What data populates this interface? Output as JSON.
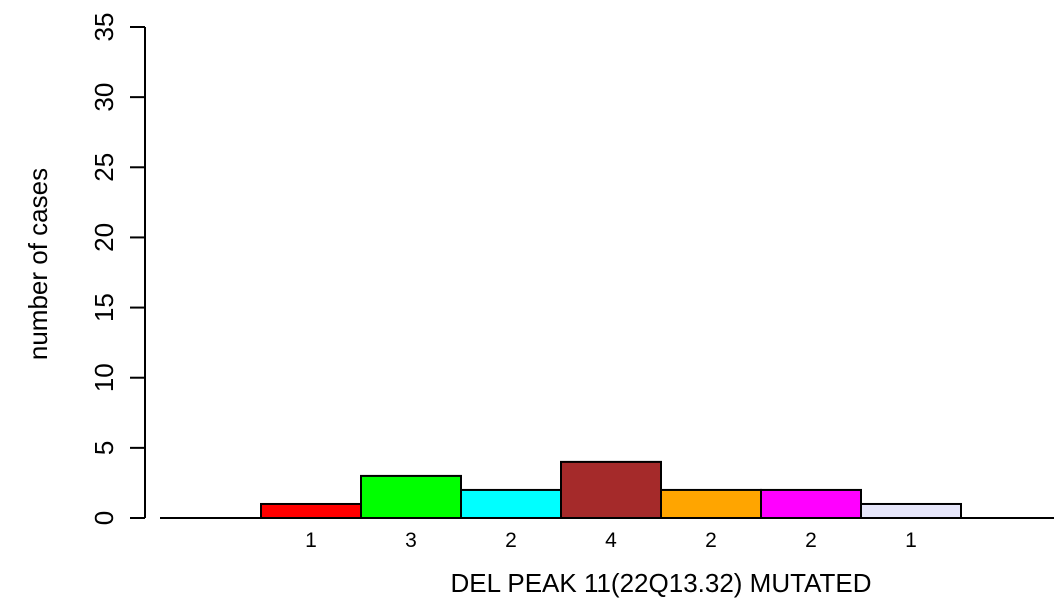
{
  "chart_data": {
    "type": "bar",
    "title": "",
    "xlabel": "DEL PEAK 11(22Q13.32) MUTATED",
    "ylabel": "number of cases",
    "ylim": [
      0,
      35
    ],
    "yticks": [
      0,
      5,
      10,
      15,
      20,
      25,
      30,
      35
    ],
    "grid": false,
    "legend": "none",
    "categories": [
      "1",
      "3",
      "2",
      "4",
      "2",
      "2",
      "1"
    ],
    "values": [
      1,
      3,
      2,
      4,
      2,
      2,
      1
    ],
    "colors": [
      "#ff0000",
      "#00ff00",
      "#00ffff",
      "#a52a2a",
      "#ffa500",
      "#ff00ff",
      "#e6e6fa"
    ]
  }
}
